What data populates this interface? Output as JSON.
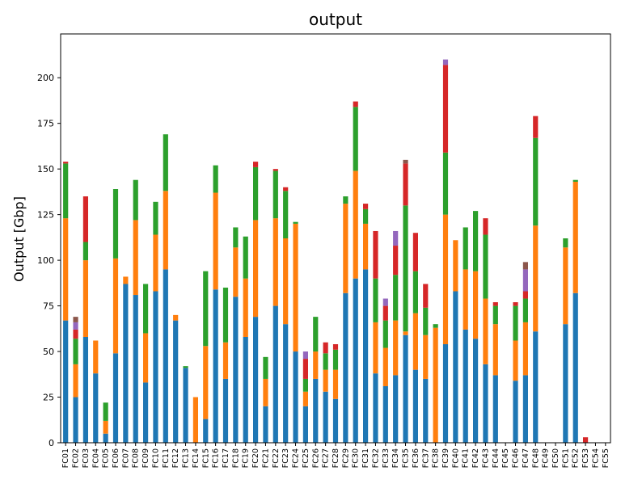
{
  "chart_data": {
    "type": "bar",
    "stacked": true,
    "title": "output",
    "xlabel": "",
    "ylabel": "Output [Gbp]",
    "ylim": [
      0,
      224
    ],
    "yticks": [
      0,
      25,
      50,
      75,
      100,
      125,
      150,
      175,
      200
    ],
    "categories": [
      "FC01",
      "FC02",
      "FC03",
      "FC04",
      "FC05",
      "FC06",
      "FC07",
      "FC08",
      "FC09",
      "FC10",
      "FC11",
      "FC12",
      "FC13",
      "FC14",
      "FC15",
      "FC16",
      "FC17",
      "FC18",
      "FC19",
      "FC20",
      "FC21",
      "FC22",
      "FC23",
      "FC24",
      "FC25",
      "FC26",
      "FC27",
      "FC28",
      "FC29",
      "FC30",
      "FC31",
      "FC32",
      "FC33",
      "FC34",
      "FC35",
      "FC36",
      "FC37",
      "FC38",
      "FC39",
      "FC40",
      "FC41",
      "FC42",
      "FC43",
      "FC44",
      "FC45",
      "FC46",
      "FC47",
      "FC48",
      "FC49",
      "FC50",
      "FC51",
      "FC52",
      "FC53",
      "FC54",
      "FC55"
    ],
    "legend": "none",
    "grid": false,
    "series": [
      {
        "color": "#1f77b4",
        "values": [
          67,
          25,
          58,
          38,
          5,
          49,
          87,
          81,
          33,
          83,
          95,
          67,
          41,
          0,
          13,
          84,
          35,
          80,
          58,
          69,
          20,
          75,
          65,
          50,
          20,
          35,
          28,
          24,
          82,
          90,
          95,
          38,
          31,
          37,
          59,
          40,
          35,
          0,
          54,
          83,
          62,
          57,
          43,
          37,
          0,
          34,
          37,
          61,
          0,
          0,
          65,
          82,
          0,
          0,
          0
        ]
      },
      {
        "color": "#ff7f0e",
        "values": [
          56,
          18,
          42,
          18,
          7,
          52,
          4,
          41,
          27,
          31,
          43,
          3,
          0,
          25,
          40,
          53,
          20,
          27,
          32,
          53,
          15,
          48,
          47,
          70,
          8,
          15,
          12,
          16,
          49,
          59,
          25,
          28,
          21,
          30,
          2,
          31,
          24,
          63,
          71,
          28,
          33,
          37,
          36,
          28,
          0,
          22,
          29,
          58,
          0,
          0,
          42,
          61,
          0,
          0,
          0
        ]
      },
      {
        "color": "#2ca02c",
        "values": [
          30,
          14,
          10,
          0,
          10,
          38,
          0,
          22,
          27,
          18,
          31,
          0,
          1,
          0,
          41,
          15,
          30,
          11,
          23,
          29,
          12,
          26,
          26,
          1,
          7,
          19,
          9,
          11,
          4,
          35,
          8,
          24,
          15,
          25,
          69,
          23,
          15,
          2,
          34,
          0,
          23,
          33,
          35,
          10,
          0,
          19,
          13,
          48,
          0,
          0,
          5,
          1,
          0,
          0,
          0
        ]
      },
      {
        "color": "#d62728",
        "values": [
          1,
          5,
          25,
          0,
          0,
          0,
          0,
          0,
          0,
          0,
          0,
          0,
          0,
          0,
          0,
          0,
          0,
          0,
          0,
          3,
          0,
          1,
          2,
          0,
          11,
          0,
          6,
          3,
          0,
          3,
          3,
          26,
          8,
          16,
          23,
          21,
          13,
          0,
          48,
          0,
          0,
          0,
          9,
          2,
          0,
          2,
          4,
          12,
          0,
          0,
          0,
          0,
          3,
          0,
          0
        ]
      },
      {
        "color": "#9467bd",
        "values": [
          0,
          4,
          0,
          0,
          0,
          0,
          0,
          0,
          0,
          0,
          0,
          0,
          0,
          0,
          0,
          0,
          0,
          0,
          0,
          0,
          0,
          0,
          0,
          0,
          4,
          0,
          0,
          0,
          0,
          0,
          0,
          0,
          4,
          8,
          0,
          0,
          0,
          0,
          3,
          0,
          0,
          0,
          0,
          0,
          0,
          0,
          12,
          0,
          0,
          0,
          0,
          0,
          0,
          0,
          0
        ]
      },
      {
        "color": "#8c564b",
        "values": [
          0,
          3,
          0,
          0,
          0,
          0,
          0,
          0,
          0,
          0,
          0,
          0,
          0,
          0,
          0,
          0,
          0,
          0,
          0,
          0,
          0,
          0,
          0,
          0,
          0,
          0,
          0,
          0,
          0,
          0,
          0,
          0,
          0,
          0,
          2,
          0,
          0,
          0,
          0,
          0,
          0,
          0,
          0,
          0,
          0,
          0,
          4,
          0,
          0,
          0,
          0,
          0,
          0,
          0,
          0
        ]
      }
    ]
  }
}
